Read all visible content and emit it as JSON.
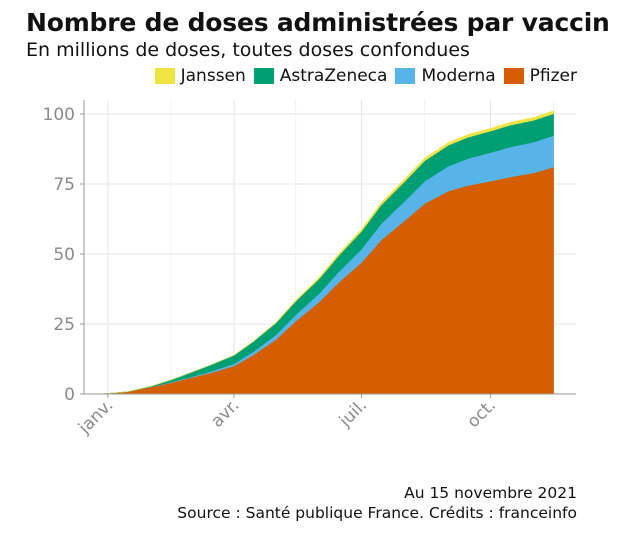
{
  "chart_data": {
    "type": "area",
    "stacked": true,
    "title": "Nombre de doses administrées par vaccin",
    "subtitle": "En millions de doses, toutes doses confondues",
    "xlabel": "",
    "ylabel": "",
    "x_ticks": [
      "janv.",
      "avr.",
      "juil.",
      "oct."
    ],
    "y_ticks": [
      0,
      25,
      50,
      75,
      100
    ],
    "ylim": [
      0,
      105
    ],
    "xlim": [
      "2020-12-15",
      "2021-12-01"
    ],
    "grid": true,
    "legend": "top-right",
    "x": [
      "2020-12-27",
      "2021-01-15",
      "2021-02-01",
      "2021-02-15",
      "2021-03-01",
      "2021-03-15",
      "2021-04-01",
      "2021-04-15",
      "2021-05-01",
      "2021-05-15",
      "2021-06-01",
      "2021-06-15",
      "2021-07-01",
      "2021-07-15",
      "2021-08-01",
      "2021-08-15",
      "2021-09-01",
      "2021-09-15",
      "2021-10-01",
      "2021-10-15",
      "2021-11-01",
      "2021-11-15"
    ],
    "series": [
      {
        "name": "Pfizer",
        "color": "#d45e00",
        "values": [
          0.0,
          0.8,
          2.5,
          4.0,
          5.8,
          7.5,
          10.0,
          14.0,
          19.5,
          26.0,
          33.0,
          40.0,
          47.0,
          55.0,
          62.0,
          68.0,
          72.5,
          74.5,
          76.0,
          77.5,
          79.0,
          81.0
        ]
      },
      {
        "name": "Moderna",
        "color": "#56b4e9",
        "values": [
          0.0,
          0.0,
          0.1,
          0.2,
          0.3,
          0.5,
          0.8,
          1.2,
          1.7,
          2.3,
          3.0,
          3.8,
          4.8,
          5.8,
          7.0,
          8.0,
          8.9,
          9.6,
          10.2,
          10.7,
          11.0,
          11.3
        ]
      },
      {
        "name": "AstraZeneca",
        "color": "#009e73",
        "values": [
          0.0,
          0.0,
          0.2,
          0.8,
          1.5,
          2.3,
          3.0,
          3.6,
          4.2,
          4.8,
          5.3,
          5.8,
          6.3,
          6.7,
          7.0,
          7.3,
          7.5,
          7.6,
          7.7,
          7.8,
          7.8,
          7.8
        ]
      },
      {
        "name": "Janssen",
        "color": "#f0e442",
        "values": [
          0.0,
          0.0,
          0.0,
          0.0,
          0.0,
          0.0,
          0.0,
          0.05,
          0.15,
          0.3,
          0.45,
          0.6,
          0.7,
          0.8,
          0.85,
          0.9,
          0.93,
          0.95,
          0.97,
          0.98,
          1.0,
          1.0
        ]
      }
    ]
  },
  "legend_items": [
    {
      "label": "Janssen",
      "color": "#f0e442"
    },
    {
      "label": "AstraZeneca",
      "color": "#009e73"
    },
    {
      "label": "Moderna",
      "color": "#56b4e9"
    },
    {
      "label": "Pfizer",
      "color": "#d45e00"
    }
  ],
  "footer": {
    "date_note": "Au 15 novembre 2021",
    "source": "Source : Santé publique France. Crédits : franceinfo"
  }
}
